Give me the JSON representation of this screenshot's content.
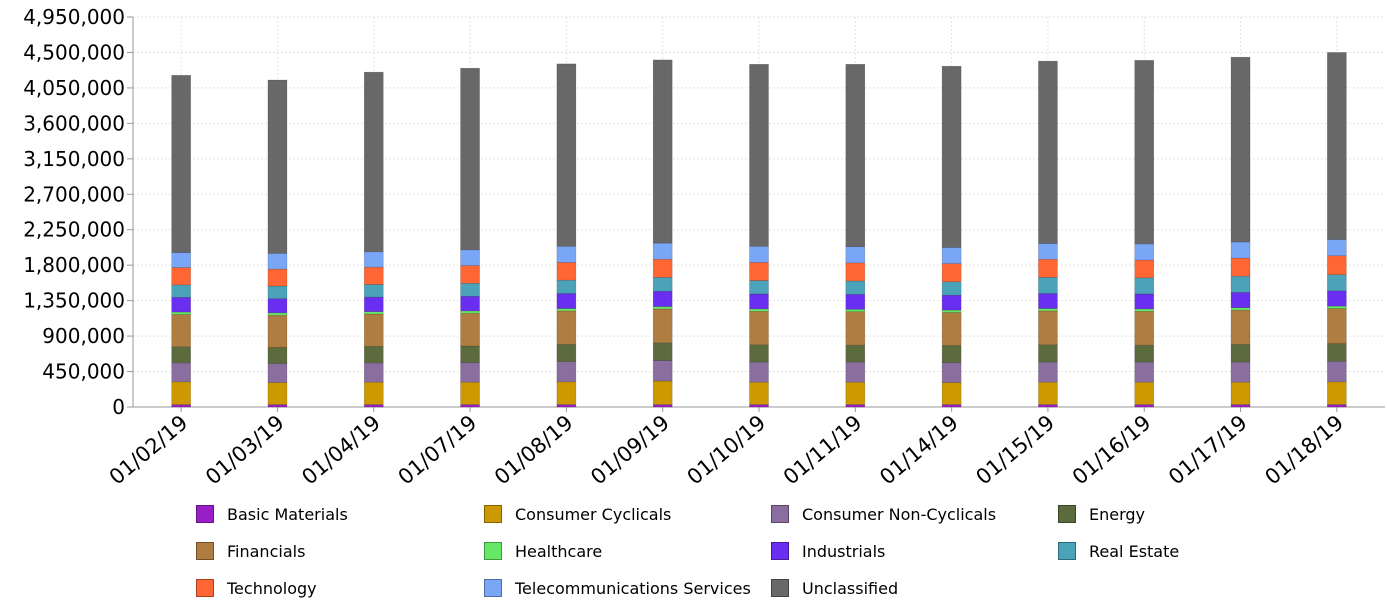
{
  "chart_data": {
    "type": "bar",
    "stacked": true,
    "title": "",
    "xlabel": "",
    "ylabel": "",
    "ylim": [
      0,
      4950000
    ],
    "y_ticks": [
      0,
      450000,
      900000,
      1350000,
      1800000,
      2250000,
      2700000,
      3150000,
      3600000,
      4050000,
      4500000,
      4950000
    ],
    "y_tick_labels": [
      "0",
      "450,000",
      "900,000",
      "1,350,000",
      "1,800,000",
      "2,250,000",
      "2,700,000",
      "3,150,000",
      "3,600,000",
      "4,050,000",
      "4,500,000",
      "4,950,000"
    ],
    "grid": true,
    "legend_position": "bottom",
    "categories": [
      "01/02/19",
      "01/03/19",
      "01/04/19",
      "01/07/19",
      "01/08/19",
      "01/09/19",
      "01/10/19",
      "01/11/19",
      "01/14/19",
      "01/15/19",
      "01/16/19",
      "01/17/19",
      "01/18/19"
    ],
    "series": [
      {
        "name": "Basic Materials",
        "color": "#9a1ec8",
        "values": [
          30000,
          30000,
          30000,
          30000,
          30000,
          30000,
          30000,
          30000,
          30000,
          30000,
          30000,
          30000,
          30000
        ]
      },
      {
        "name": "Consumer Cyclicals",
        "color": "#cc9900",
        "values": [
          290000,
          280000,
          285000,
          285000,
          290000,
          300000,
          285000,
          285000,
          280000,
          285000,
          285000,
          285000,
          290000
        ]
      },
      {
        "name": "Consumer Non-Cyclicals",
        "color": "#8a6ea0",
        "values": [
          240000,
          240000,
          245000,
          250000,
          255000,
          260000,
          255000,
          255000,
          255000,
          255000,
          255000,
          255000,
          260000
        ]
      },
      {
        "name": "Energy",
        "color": "#5c6b3e",
        "values": [
          205000,
          205000,
          210000,
          210000,
          220000,
          225000,
          220000,
          215000,
          215000,
          220000,
          215000,
          225000,
          225000
        ]
      },
      {
        "name": "Financials",
        "color": "#b07d40",
        "values": [
          410000,
          410000,
          410000,
          415000,
          425000,
          430000,
          425000,
          425000,
          420000,
          430000,
          430000,
          435000,
          445000
        ]
      },
      {
        "name": "Healthcare",
        "color": "#66e866",
        "values": [
          30000,
          30000,
          30000,
          30000,
          30000,
          30000,
          30000,
          30000,
          30000,
          30000,
          30000,
          30000,
          30000
        ]
      },
      {
        "name": "Industrials",
        "color": "#6a2ef0",
        "values": [
          185000,
          180000,
          185000,
          185000,
          190000,
          195000,
          190000,
          190000,
          190000,
          190000,
          190000,
          195000,
          195000
        ]
      },
      {
        "name": "Real Estate",
        "color": "#4aa3b8",
        "values": [
          160000,
          160000,
          160000,
          165000,
          170000,
          175000,
          170000,
          170000,
          170000,
          205000,
          205000,
          205000,
          205000
        ]
      },
      {
        "name": "Technology",
        "color": "#ff6633",
        "values": [
          220000,
          215000,
          220000,
          225000,
          225000,
          230000,
          230000,
          230000,
          230000,
          230000,
          225000,
          230000,
          240000
        ]
      },
      {
        "name": "Telecommunications Services",
        "color": "#7aa6f8",
        "values": [
          190000,
          200000,
          195000,
          200000,
          205000,
          205000,
          205000,
          205000,
          205000,
          200000,
          205000,
          205000,
          205000
        ]
      },
      {
        "name": "Unclassified",
        "color": "#686868",
        "values": [
          2250000,
          2200000,
          2280000,
          2305000,
          2315000,
          2325000,
          2310000,
          2315000,
          2300000,
          2315000,
          2330000,
          2345000,
          2375000
        ]
      }
    ]
  }
}
